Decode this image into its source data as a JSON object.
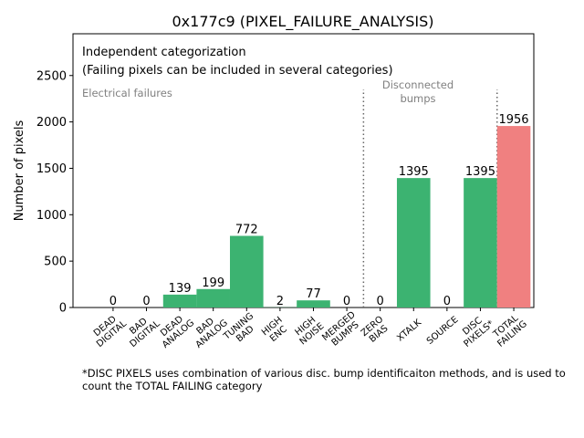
{
  "chart_data": {
    "type": "bar",
    "title": "0x177c9 (PIXEL_FAILURE_ANALYSIS)",
    "ylabel": "Number of pixels",
    "xlabel": "",
    "ylim": [
      0,
      2950
    ],
    "yticks": [
      0,
      500,
      1000,
      1500,
      2000,
      2500
    ],
    "categories": [
      "DEAD\nDIGITAL",
      "BAD\nDIGITAL",
      "DEAD\nANALOG",
      "BAD\nANALOG",
      "TUNING\nBAD",
      "HIGH\nENC",
      "HIGH\nNOISE",
      "MERGED\nBUMPS",
      "ZERO\nBIAS",
      "XTALK",
      "SOURCE",
      "DISC\nPIXELS*",
      "TOTAL\nFAILING"
    ],
    "values": [
      0,
      0,
      139,
      199,
      772,
      2,
      77,
      0,
      0,
      1395,
      0,
      1395,
      1956
    ],
    "value_labels": [
      "0",
      "0",
      "139",
      "199",
      "772",
      "2",
      "77",
      "0",
      "0",
      "1395",
      "0",
      "1395",
      "1956"
    ],
    "bar_colors": [
      "#3cb371",
      "#3cb371",
      "#3cb371",
      "#3cb371",
      "#3cb371",
      "#3cb371",
      "#3cb371",
      "#3cb371",
      "#3cb371",
      "#3cb371",
      "#3cb371",
      "#3cb371",
      "#f08080"
    ],
    "annotations": {
      "line1": "Independent categorization",
      "line2": "(Failing pixels can be included in several categories)",
      "electrical": "Electrical failures",
      "disconnected_line1": "Disconnected",
      "disconnected_line2": "bumps"
    },
    "separator_after_categories": [
      7,
      11
    ],
    "grid": false
  },
  "footnote": "*DISC PIXELS uses combination of various disc. bump identificaiton methods, and is used to count the TOTAL FAILING category",
  "colors": {
    "bar": "#3cb371",
    "total_bar": "#f08080",
    "annotation_gray": "#808080"
  }
}
